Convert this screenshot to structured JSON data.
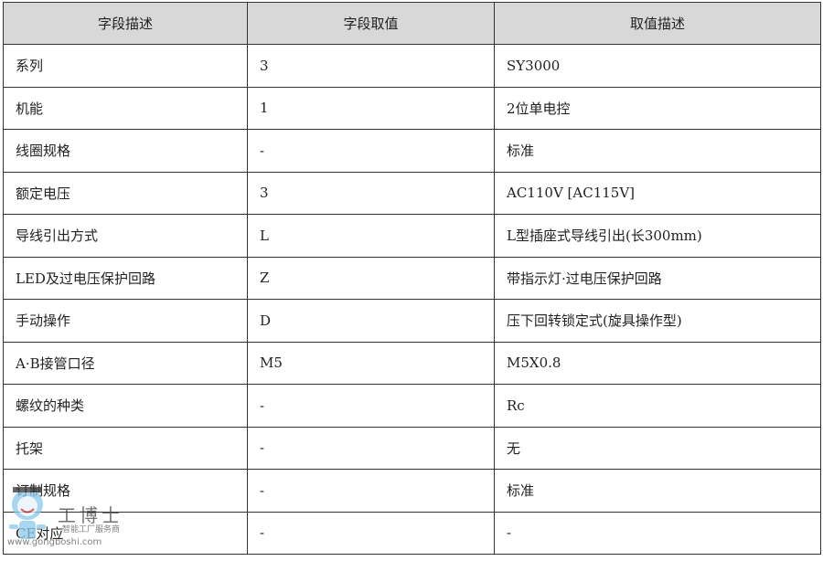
{
  "table": {
    "headers": [
      "字段描述",
      "字段取值",
      "取值描述"
    ],
    "rows": [
      [
        "系列",
        "3",
        "SY3000"
      ],
      [
        "机能",
        "1",
        "2位单电控"
      ],
      [
        "线圈规格",
        "-",
        "标准"
      ],
      [
        "额定电压",
        "3",
        "AC110V [AC115V]"
      ],
      [
        "导线引出方式",
        "L",
        "L型插座式导线引出(长300mm)"
      ],
      [
        "LED及过电压保护回路",
        "Z",
        "带指示灯·过电压保护回路"
      ],
      [
        "手动操作",
        "D",
        "压下回转锁定式(旋具操作型)"
      ],
      [
        "A·B接管口径",
        "M5",
        "M5X0.8"
      ],
      [
        "螺纹的种类",
        "-",
        "Rc"
      ],
      [
        "托架",
        "-",
        "无"
      ],
      [
        "订制规格",
        "-",
        "标准"
      ],
      [
        "CE对应",
        "-",
        "-"
      ]
    ]
  },
  "watermark": {
    "brand": "工博士",
    "tagline": "智能工厂服务商",
    "site": "www.gongboshi.com"
  },
  "colors": {
    "header_bg": "#d8d8d8",
    "border": "#333333"
  }
}
